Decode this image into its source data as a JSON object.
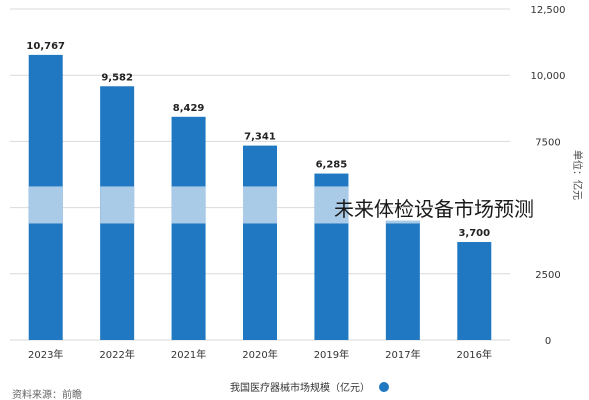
{
  "overlay_title": "未来体检设备市场预测",
  "legend_label": "我国医疗器械市场规模（亿元）",
  "source_label": "资料来源：前瞻",
  "colors": {
    "bar": "#1f78c1",
    "band": "#a9cbe8"
  },
  "chart_data": {
    "type": "bar",
    "categories": [
      "2023年",
      "2022年",
      "2021年",
      "2020年",
      "2019年",
      "2017年",
      "2016年"
    ],
    "values": [
      10767,
      9582,
      8429,
      7341,
      6285,
      4500,
      3700
    ],
    "value_labels": [
      "10,767",
      "9,582",
      "8,429",
      "7,341",
      "6,285",
      "",
      "3,700"
    ],
    "yticks": [
      0,
      2500,
      5000,
      7500,
      10000,
      12500
    ],
    "ytick_labels": [
      "0",
      "2500",
      "",
      "7500",
      "10,000",
      "12,500"
    ],
    "ylim": [
      0,
      12500
    ],
    "ylabel": "单位：亿元",
    "band_range": [
      4400,
      5800
    ],
    "grid": true,
    "legend": "bottom",
    "series": [
      {
        "name": "我国医疗器械市场规模（亿元）",
        "values": [
          10767,
          9582,
          8429,
          7341,
          6285,
          4500,
          3700
        ]
      }
    ]
  }
}
